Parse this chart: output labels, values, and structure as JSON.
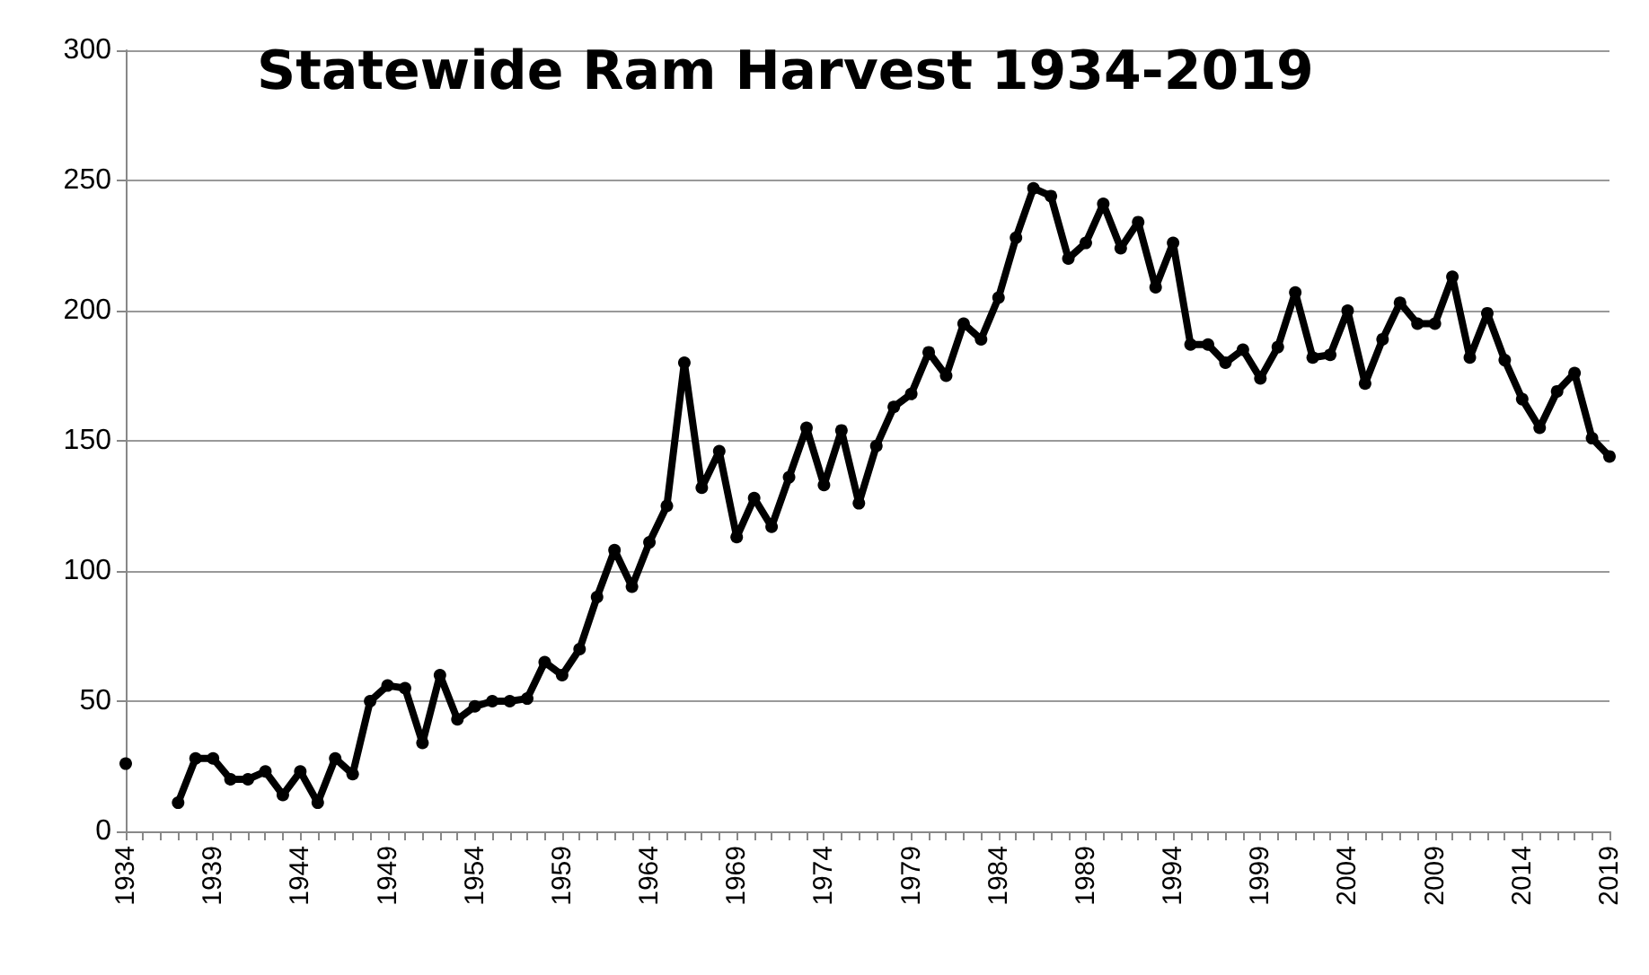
{
  "chart_data": {
    "type": "line",
    "title": "Statewide Ram Harvest 1934-2019",
    "categories": [
      "1934",
      null,
      null,
      null,
      null,
      "1939",
      null,
      null,
      null,
      null,
      "1944",
      null,
      null,
      null,
      null,
      "1949",
      null,
      null,
      null,
      null,
      "1954",
      null,
      null,
      null,
      null,
      "1959",
      null,
      null,
      null,
      null,
      "1964",
      null,
      null,
      null,
      null,
      "1969",
      null,
      null,
      null,
      null,
      "1974",
      null,
      null,
      null,
      null,
      "1979",
      null,
      null,
      null,
      null,
      "1984",
      null,
      null,
      null,
      null,
      "1989",
      null,
      null,
      null,
      null,
      "1994",
      null,
      null,
      null,
      null,
      "1999",
      null,
      null,
      null,
      null,
      "2004",
      null,
      null,
      null,
      null,
      "2009",
      null,
      null,
      null,
      null,
      "2014",
      null,
      null,
      null,
      null,
      "2019"
    ],
    "series": [
      {
        "color": "#000000",
        "values": [
          26,
          null,
          null,
          11,
          28,
          28,
          20,
          20,
          23,
          14,
          23,
          11,
          28,
          22,
          50,
          56,
          55,
          34,
          60,
          43,
          48,
          50,
          50,
          51,
          65,
          60,
          70,
          90,
          108,
          94,
          111,
          125,
          180,
          132,
          146,
          113,
          128,
          117,
          136,
          155,
          133,
          154,
          126,
          148,
          163,
          168,
          184,
          175,
          195,
          189,
          205,
          228,
          247,
          244,
          220,
          226,
          241,
          224,
          234,
          209,
          226,
          187,
          187,
          180,
          185,
          174,
          186,
          207,
          182,
          183,
          200,
          172,
          189,
          203,
          195,
          195,
          213,
          182,
          199,
          181,
          166,
          155,
          169,
          176,
          151,
          144
        ]
      }
    ],
    "ylim": [
      0,
      300
    ],
    "yticks": [
      0,
      50,
      100,
      150,
      200,
      250,
      300
    ],
    "grid": "y",
    "marker": "circle",
    "line_style": "solid"
  }
}
